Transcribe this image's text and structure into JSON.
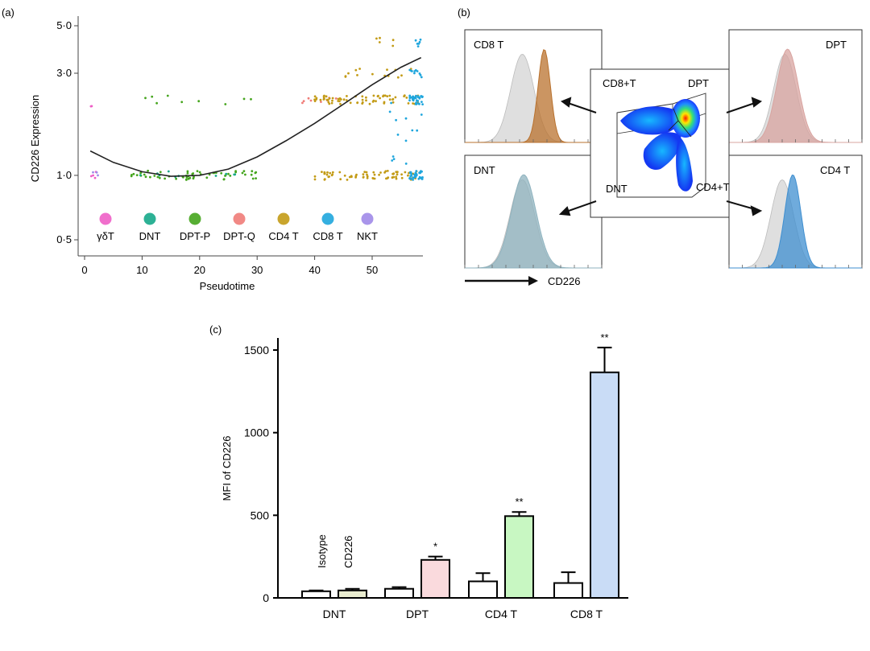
{
  "panel_labels": {
    "a": "(a)",
    "b": "(b)",
    "c": "(c)"
  },
  "colors": {
    "gdT": "#ee5fc6",
    "DNT": "#16a889",
    "DPT_P": "#45a51d",
    "DPT_Q": "#f07c78",
    "CD4T": "#c39b16",
    "CD8T": "#1fa6dd",
    "NKT": "#a08ae8",
    "iso_fill": "#d9d9d9",
    "cd8_fill": "#b9712d",
    "dpt_fill": "#d8a4a0",
    "dnt_fill": "#8fb3bf",
    "cd4_fill": "#3f8fd0",
    "bar_dpt": "#fadadd",
    "bar_cd4": "#c8f7c2",
    "bar_cd8": "#c9dcf6",
    "bar_dnt": "#e9eccf"
  },
  "chart_data": [
    {
      "id": "a",
      "type": "scatter",
      "xlabel": "Pseudotime",
      "ylabel": "CD226 Expression",
      "xlim": [
        0,
        60
      ],
      "ylim": [
        0.45,
        5.2
      ],
      "yscale": "log",
      "xticks": [
        0,
        10,
        20,
        30,
        40,
        50
      ],
      "yticks": [
        {
          "value": 0.5,
          "label": "0·5"
        },
        {
          "value": 1.0,
          "label": "1·0"
        },
        {
          "value": 3.0,
          "label": "3·0"
        },
        {
          "value": 5.0,
          "label": "5·0"
        }
      ],
      "legend": [
        {
          "key": "gdT",
          "label": "γδT"
        },
        {
          "key": "DNT",
          "label": "DNT"
        },
        {
          "key": "DPT_P",
          "label": "DPT-P"
        },
        {
          "key": "DPT_Q",
          "label": "DPT-Q"
        },
        {
          "key": "CD4T",
          "label": "CD4 T"
        },
        {
          "key": "CD8T",
          "label": "CD8 T"
        },
        {
          "key": "NKT",
          "label": "NKT"
        }
      ],
      "trend": {
        "x": [
          1,
          5,
          10,
          15,
          20,
          25,
          30,
          35,
          40,
          45,
          50,
          55,
          58.5
        ],
        "y": [
          1.3,
          1.15,
          1.04,
          0.99,
          1.0,
          1.07,
          1.22,
          1.45,
          1.75,
          2.15,
          2.65,
          3.2,
          3.55
        ]
      },
      "clusters": [
        {
          "group": "gdT",
          "x": [
            1,
            3
          ],
          "y": [
            1.0,
            1.0
          ],
          "n": 4
        },
        {
          "group": "NKT",
          "x": [
            1,
            3
          ],
          "y": [
            1.0,
            1.0
          ],
          "n": 3
        },
        {
          "group": "gdT",
          "x": [
            1,
            3
          ],
          "y": [
            2.2,
            2.2
          ],
          "n": 2
        },
        {
          "group": "DPT_P",
          "x": [
            8,
            30
          ],
          "y": [
            1.0,
            1.0
          ],
          "n": 60
        },
        {
          "group": "DNT",
          "x": [
            8,
            28
          ],
          "y": [
            1.0,
            1.0
          ],
          "n": 10
        },
        {
          "group": "DPT_P",
          "x": [
            10,
            30
          ],
          "y": [
            2.25,
            2.25
          ],
          "n": 9
        },
        {
          "group": "DPT_Q",
          "x": [
            37,
            44
          ],
          "y": [
            2.25,
            2.25
          ],
          "n": 8
        },
        {
          "group": "CD4T",
          "x": [
            40,
            58
          ],
          "y": [
            2.25,
            2.25
          ],
          "n": 70
        },
        {
          "group": "CD4T",
          "x": [
            40,
            58
          ],
          "y": [
            1.0,
            1.0
          ],
          "n": 70
        },
        {
          "group": "CD8T",
          "x": [
            56.5,
            58.8
          ],
          "y": [
            2.25,
            2.25
          ],
          "n": 30
        },
        {
          "group": "CD8T",
          "x": [
            56.5,
            58.8
          ],
          "y": [
            1.0,
            1.0
          ],
          "n": 35
        },
        {
          "group": "CD4T",
          "x": [
            44,
            57
          ],
          "y": [
            3.0,
            3.0
          ],
          "n": 14
        },
        {
          "group": "CD8T",
          "x": [
            56.5,
            58.8
          ],
          "y": [
            3.0,
            3.0
          ],
          "n": 10
        },
        {
          "group": "CD4T",
          "x": [
            50,
            57
          ],
          "y": [
            4.2,
            4.2
          ],
          "n": 5
        },
        {
          "group": "CD8T",
          "x": [
            56.5,
            58.8
          ],
          "y": [
            4.2,
            4.2
          ],
          "n": 6
        },
        {
          "group": "CD8T",
          "x": [
            53,
            59
          ],
          "y": [
            1.0,
            2.25
          ],
          "n": 14
        }
      ]
    },
    {
      "id": "b",
      "type": "histogram-overlay",
      "xlabel": "CD226",
      "histograms": [
        {
          "key": "cd8",
          "label": "CD8 T",
          "iso_mu": 0.42,
          "iso_sd": 0.085,
          "cd_mu": 0.58,
          "cd_sd": 0.045,
          "cd_color": "cd8_fill"
        },
        {
          "key": "dpt",
          "label": "DPT",
          "iso_mu": 0.42,
          "iso_sd": 0.085,
          "cd_mu": 0.44,
          "cd_sd": 0.082,
          "cd_color": "dpt_fill"
        },
        {
          "key": "dnt",
          "label": "DNT",
          "iso_mu": 0.42,
          "iso_sd": 0.09,
          "cd_mu": 0.43,
          "cd_sd": 0.09,
          "cd_color": "dnt_fill"
        },
        {
          "key": "cd4",
          "label": "CD4 T",
          "iso_mu": 0.4,
          "iso_sd": 0.085,
          "cd_mu": 0.48,
          "cd_sd": 0.06,
          "cd_color": "cd4_fill"
        }
      ],
      "center_labels": {
        "cd8": "CD8+T",
        "dpt": "DPT",
        "dnt": "DNT",
        "cd4": "CD4+T"
      }
    },
    {
      "id": "c",
      "type": "bar",
      "ylabel": "MFI of CD226",
      "ylim": [
        0,
        1500
      ],
      "yticks": [
        0,
        500,
        1000,
        1500
      ],
      "categories": [
        "DNT",
        "DPT",
        "CD4 T",
        "CD8 T"
      ],
      "series": [
        {
          "name": "Isotype",
          "values": [
            40,
            55,
            100,
            90
          ],
          "errors": [
            5,
            10,
            50,
            65
          ]
        },
        {
          "name": "CD226",
          "values": [
            45,
            230,
            495,
            1365
          ],
          "errors": [
            10,
            20,
            25,
            150
          ]
        }
      ],
      "bar_colors": [
        "bar_dnt",
        "bar_dpt",
        "bar_cd4",
        "bar_cd8"
      ],
      "annotations": [
        "",
        "*",
        "**",
        "**"
      ],
      "series_labels_rotated": [
        "Isotype",
        "CD226"
      ]
    }
  ]
}
